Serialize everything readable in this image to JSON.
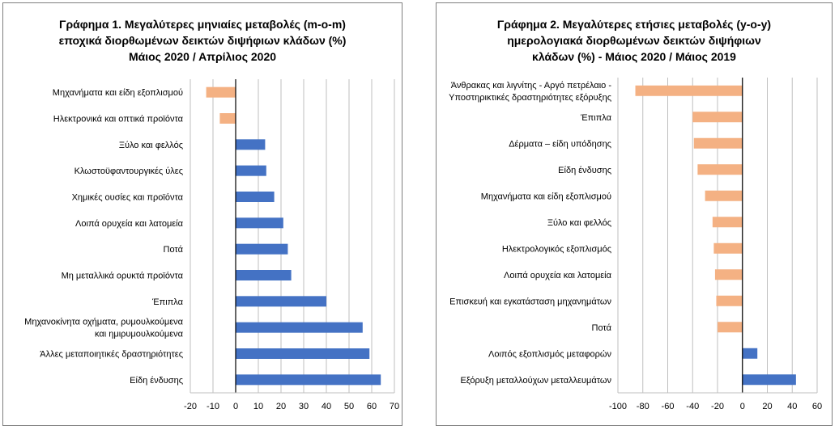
{
  "colors": {
    "positive": "#4472c4",
    "negative": "#f4b183",
    "grid": "#bfbfbf",
    "axis": "#000000"
  },
  "chart_data": [
    {
      "type": "bar",
      "orientation": "horizontal",
      "title_lines": [
        "Γράφημα 1. Μεγαλύτερες μηνιαίες μεταβολές (m-o-m)",
        "εποχικά διορθωμένων δεικτών διψήφιων κλάδων (%)",
        "Μάιος 2020 / Απρίλιος 2020"
      ],
      "categories": [
        [
          "Μηχανήματα και είδη εξοπλισμού"
        ],
        [
          "Ηλεκτρονικά και οπτικά προϊόντα"
        ],
        [
          "Ξύλο και φελλός"
        ],
        [
          "Κλωστοϋφαντουργικές ύλες"
        ],
        [
          "Χημικές ουσίες και προϊόντα"
        ],
        [
          "Λοιπά ορυχεία και λατομεία"
        ],
        [
          "Ποτά"
        ],
        [
          "Μη μεταλλικά ορυκτά προϊόντα"
        ],
        [
          "Έπιπλα"
        ],
        [
          "Μηχανοκίνητα οχήματα, ρυμουλκούμενα",
          "και ημιρυμουλκούμενα"
        ],
        [
          "Άλλες μεταποιητικές δραστηριότητες"
        ],
        [
          "Είδη ένδυσης"
        ]
      ],
      "values": [
        -13,
        -7,
        13,
        13.5,
        17,
        21,
        23,
        24.5,
        40,
        56,
        59,
        64
      ],
      "xlim": [
        -20,
        70
      ],
      "xticks": [
        "-20",
        "-10",
        "0",
        "10",
        "20",
        "30",
        "40",
        "50",
        "60",
        "70"
      ],
      "grid": true
    },
    {
      "type": "bar",
      "orientation": "horizontal",
      "title_lines": [
        "Γράφημα 2. Μεγαλύτερες ετήσιες μεταβολές (y-o-y)",
        "ημερολογιακά διορθωμένων δεικτών διψήφιων",
        "κλάδων (%) - Μάιος 2020 / Μάιος 2019"
      ],
      "categories": [
        [
          "Άνθρακας και λιγνίτης - Αργό πετρέλαιο -",
          "Υποστηρικτικές δραστηριότητες εξόρυξης"
        ],
        [
          "Έπιπλα"
        ],
        [
          "Δέρματα – είδη υπόδησης"
        ],
        [
          "Είδη ένδυσης"
        ],
        [
          "Μηχανήματα και είδη εξοπλισμού"
        ],
        [
          "Ξύλο και φελλός"
        ],
        [
          "Ηλεκτρολογικός εξοπλισμός"
        ],
        [
          "Λοιπά ορυχεία και λατομεία"
        ],
        [
          "Επισκευή και εγκατάσταση μηχανημάτων"
        ],
        [
          "Ποτά"
        ],
        [
          "Λοιπός εξοπλισμός μεταφορών"
        ],
        [
          "Εξόρυξη μεταλλούχων μεταλλευμάτων"
        ]
      ],
      "values": [
        -86,
        -40,
        -39,
        -36,
        -30,
        -24,
        -23,
        -22,
        -21,
        -20,
        12,
        43
      ],
      "xlim": [
        -100,
        60
      ],
      "xticks": [
        "-100",
        "-80",
        "-60",
        "-40",
        "-20",
        "0",
        "20",
        "40",
        "60"
      ],
      "grid": true
    }
  ]
}
